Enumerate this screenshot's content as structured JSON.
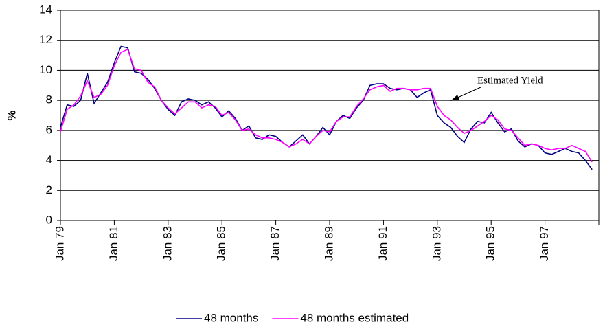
{
  "chart_data": {
    "type": "line",
    "y_label": "%",
    "annotation": "Estimated Yield",
    "categories": [
      "Jan 79",
      null,
      null,
      null,
      null,
      null,
      null,
      null,
      "Jan 81",
      null,
      null,
      null,
      null,
      null,
      null,
      null,
      "Jan 83",
      null,
      null,
      null,
      null,
      null,
      null,
      null,
      "Jan 85",
      null,
      null,
      null,
      null,
      null,
      null,
      null,
      "Jan 87",
      null,
      null,
      null,
      null,
      null,
      null,
      null,
      "Jan 89",
      null,
      null,
      null,
      null,
      null,
      null,
      null,
      "Jan 91",
      null,
      null,
      null,
      null,
      null,
      null,
      null,
      "Jan 93",
      null,
      null,
      null,
      null,
      null,
      null,
      null,
      "Jan 95",
      null,
      null,
      null,
      null,
      null,
      null,
      null,
      "Jan 97",
      null,
      null,
      null,
      null,
      null,
      null,
      null
    ],
    "series": [
      {
        "name": "48 months",
        "color": "#000080",
        "values": [
          6.2,
          7.7,
          7.6,
          8.0,
          9.8,
          7.8,
          8.5,
          9.2,
          10.5,
          11.6,
          11.5,
          9.9,
          9.8,
          9.4,
          8.8,
          8.0,
          7.4,
          7.0,
          7.9,
          8.1,
          8.0,
          7.7,
          7.9,
          7.5,
          6.9,
          7.3,
          6.8,
          6.0,
          6.3,
          5.5,
          5.4,
          5.7,
          5.6,
          5.2,
          4.9,
          5.3,
          5.7,
          5.1,
          5.6,
          6.2,
          5.7,
          6.6,
          7.0,
          6.8,
          7.5,
          8.0,
          9.0,
          9.1,
          9.1,
          8.8,
          8.7,
          8.8,
          8.7,
          8.2,
          8.5,
          8.7,
          7.0,
          6.5,
          6.2,
          5.6,
          5.2,
          6.1,
          6.6,
          6.5,
          7.2,
          6.5,
          5.9,
          6.1,
          5.3,
          4.9,
          5.1,
          5.0,
          4.5,
          4.4,
          4.6,
          4.8,
          4.6,
          4.5,
          4.0,
          3.4
        ]
      },
      {
        "name": "48 months estimated",
        "color": "#ff00ff",
        "values": [
          5.9,
          7.4,
          7.7,
          8.3,
          9.3,
          8.2,
          8.4,
          9.0,
          10.3,
          11.2,
          11.4,
          10.1,
          10.0,
          9.2,
          8.9,
          8.0,
          7.5,
          7.1,
          7.5,
          7.9,
          7.9,
          7.5,
          7.7,
          7.6,
          7.0,
          7.2,
          6.7,
          6.0,
          6.1,
          5.7,
          5.5,
          5.5,
          5.4,
          5.2,
          4.9,
          5.1,
          5.4,
          5.1,
          5.6,
          6.0,
          5.9,
          6.6,
          6.9,
          6.9,
          7.6,
          8.1,
          8.7,
          8.9,
          9.0,
          8.6,
          8.8,
          8.8,
          8.7,
          8.7,
          8.8,
          8.8,
          7.6,
          7.0,
          6.7,
          6.2,
          5.8,
          6.0,
          6.3,
          6.6,
          7.0,
          6.7,
          6.1,
          6.0,
          5.5,
          5.0,
          5.1,
          5.0,
          4.8,
          4.7,
          4.8,
          4.8,
          5.0,
          4.8,
          4.6,
          3.9
        ]
      }
    ],
    "ylim": [
      0,
      14
    ],
    "yticks": [
      0,
      2,
      4,
      6,
      8,
      10,
      12,
      14
    ],
    "grid": true
  }
}
